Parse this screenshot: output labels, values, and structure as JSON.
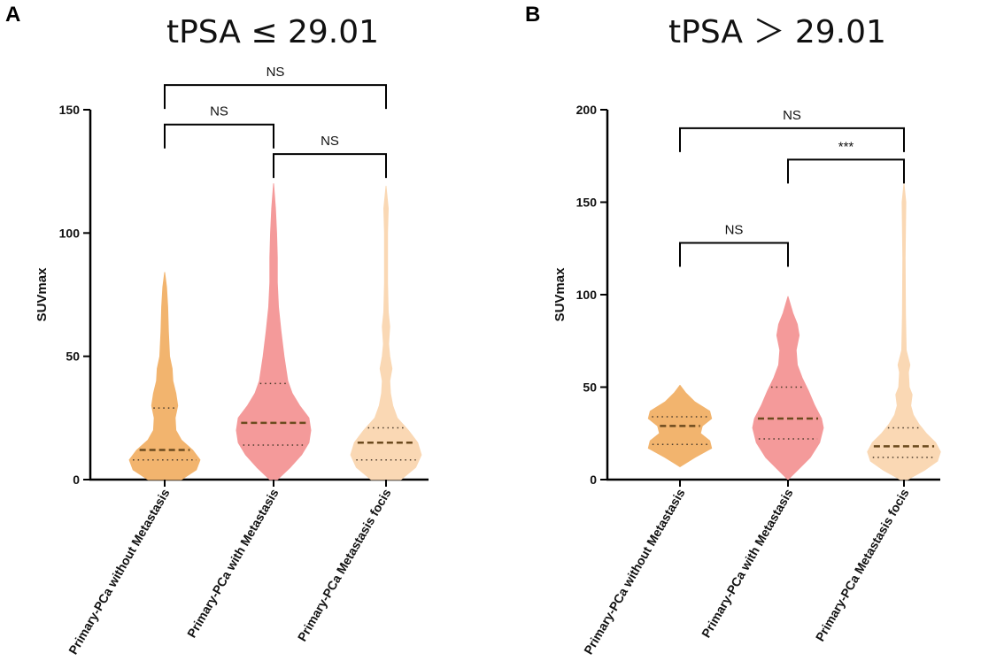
{
  "chart_data": [
    {
      "type": "violin",
      "panel": "A",
      "title": "tPSA ≤ 29.01",
      "ylabel": "SUVmax",
      "xlabel": "",
      "ylim": [
        0,
        150
      ],
      "yticks": [
        0,
        50,
        100,
        150
      ],
      "categories": [
        "Primary-PCa without Metastasis",
        "Primary-PCa with Metastasis",
        "Primary-PCa Metastasis focis"
      ],
      "series": [
        {
          "name": "Primary-PCa without Metastasis",
          "color": "#f2b46e",
          "min": 0,
          "max": 84,
          "q1": 8,
          "median": 12,
          "q3": 29,
          "density": [
            [
              0,
              0.45
            ],
            [
              4,
              0.85
            ],
            [
              8,
              0.95
            ],
            [
              12,
              0.75
            ],
            [
              16,
              0.45
            ],
            [
              20,
              0.3
            ],
            [
              25,
              0.28
            ],
            [
              30,
              0.35
            ],
            [
              35,
              0.3
            ],
            [
              40,
              0.22
            ],
            [
              45,
              0.2
            ],
            [
              50,
              0.13
            ],
            [
              60,
              0.1
            ],
            [
              70,
              0.08
            ],
            [
              78,
              0.05
            ],
            [
              84,
              0
            ]
          ]
        },
        {
          "name": "Primary-PCa with Metastasis",
          "color": "#f49a9a",
          "min": 0,
          "max": 120,
          "q1": 14,
          "median": 23,
          "q3": 39,
          "density": [
            [
              0,
              0.1
            ],
            [
              5,
              0.45
            ],
            [
              10,
              0.75
            ],
            [
              15,
              0.95
            ],
            [
              20,
              1.0
            ],
            [
              25,
              0.95
            ],
            [
              30,
              0.7
            ],
            [
              35,
              0.5
            ],
            [
              40,
              0.38
            ],
            [
              50,
              0.28
            ],
            [
              60,
              0.2
            ],
            [
              70,
              0.13
            ],
            [
              80,
              0.1
            ],
            [
              90,
              0.1
            ],
            [
              100,
              0.08
            ],
            [
              110,
              0.05
            ],
            [
              120,
              0
            ]
          ]
        },
        {
          "name": "Primary-PCa Metastasis focis",
          "color": "#fad8b4",
          "min": 0,
          "max": 119,
          "q1": 8,
          "median": 15,
          "q3": 21,
          "density": [
            [
              0,
              0.4
            ],
            [
              5,
              0.8
            ],
            [
              10,
              0.95
            ],
            [
              15,
              0.85
            ],
            [
              20,
              0.6
            ],
            [
              25,
              0.3
            ],
            [
              30,
              0.18
            ],
            [
              35,
              0.12
            ],
            [
              40,
              0.1
            ],
            [
              45,
              0.16
            ],
            [
              50,
              0.1
            ],
            [
              55,
              0.07
            ],
            [
              62,
              0.1
            ],
            [
              68,
              0.06
            ],
            [
              80,
              0.04
            ],
            [
              100,
              0.04
            ],
            [
              110,
              0.06
            ],
            [
              119,
              0
            ]
          ]
        }
      ],
      "comparisons": [
        {
          "from": 0,
          "to": 2,
          "label": "NS",
          "y": 160
        },
        {
          "from": 0,
          "to": 1,
          "label": "NS",
          "y": 144
        },
        {
          "from": 1,
          "to": 2,
          "label": "NS",
          "y": 132
        }
      ]
    },
    {
      "type": "violin",
      "panel": "B",
      "title": "tPSA ＞ 29.01",
      "ylabel": "SUVmax",
      "xlabel": "",
      "ylim": [
        0,
        200
      ],
      "yticks": [
        0,
        50,
        100,
        150,
        200
      ],
      "categories": [
        "Primary-PCa without Metastasis",
        "Primary-PCa with Metastasis",
        "Primary-PCa Metastasis focis"
      ],
      "series": [
        {
          "name": "Primary-PCa without Metastasis",
          "color": "#f2b46e",
          "min": 7,
          "max": 51,
          "q1": 19,
          "median": 29,
          "q3": 34,
          "density": [
            [
              7,
              0
            ],
            [
              12,
              0.4
            ],
            [
              17,
              0.85
            ],
            [
              21,
              0.8
            ],
            [
              25,
              0.55
            ],
            [
              29,
              0.6
            ],
            [
              33,
              0.85
            ],
            [
              37,
              0.8
            ],
            [
              42,
              0.4
            ],
            [
              47,
              0.15
            ],
            [
              51,
              0
            ]
          ]
        },
        {
          "name": "Primary-PCa with Metastasis",
          "color": "#f49a9a",
          "min": 0,
          "max": 99,
          "q1": 22,
          "median": 33,
          "q3": 50,
          "density": [
            [
              0,
              0
            ],
            [
              6,
              0.3
            ],
            [
              12,
              0.6
            ],
            [
              20,
              0.85
            ],
            [
              28,
              0.95
            ],
            [
              33,
              0.9
            ],
            [
              40,
              0.72
            ],
            [
              48,
              0.55
            ],
            [
              55,
              0.38
            ],
            [
              62,
              0.25
            ],
            [
              70,
              0.22
            ],
            [
              78,
              0.3
            ],
            [
              84,
              0.25
            ],
            [
              90,
              0.13
            ],
            [
              99,
              0
            ]
          ]
        },
        {
          "name": "Primary-PCa Metastasis focis",
          "color": "#fad8b4",
          "min": 0,
          "max": 160,
          "q1": 12,
          "median": 18,
          "q3": 28,
          "density": [
            [
              0,
              0.1
            ],
            [
              5,
              0.55
            ],
            [
              10,
              0.9
            ],
            [
              15,
              0.98
            ],
            [
              20,
              0.85
            ],
            [
              25,
              0.6
            ],
            [
              30,
              0.4
            ],
            [
              35,
              0.25
            ],
            [
              40,
              0.18
            ],
            [
              46,
              0.22
            ],
            [
              50,
              0.14
            ],
            [
              58,
              0.12
            ],
            [
              62,
              0.16
            ],
            [
              70,
              0.06
            ],
            [
              90,
              0.04
            ],
            [
              120,
              0.03
            ],
            [
              150,
              0.05
            ],
            [
              160,
              0
            ]
          ]
        }
      ],
      "comparisons": [
        {
          "from": 0,
          "to": 2,
          "label": "NS",
          "y": 190
        },
        {
          "from": 1,
          "to": 2,
          "label": "***",
          "y": 173
        },
        {
          "from": 0,
          "to": 1,
          "label": "NS",
          "y": 128
        }
      ]
    }
  ]
}
